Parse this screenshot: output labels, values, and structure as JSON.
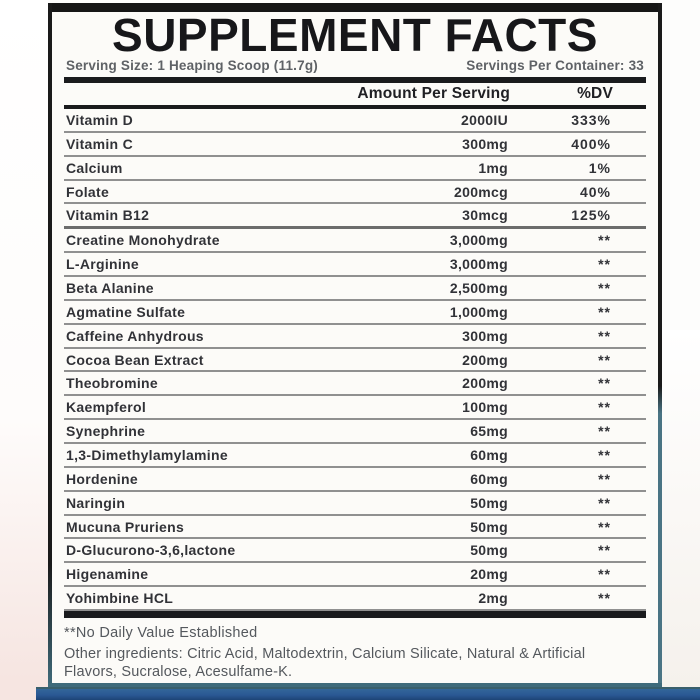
{
  "label": {
    "title": "SUPPLEMENT FACTS",
    "serving_size": "Serving Size: 1 Heaping Scoop (11.7g)",
    "servings_per_container": "Servings Per Container: 33",
    "columns": {
      "amount": "Amount Per Serving",
      "dv": "%DV"
    },
    "rows": [
      {
        "name": "Vitamin D",
        "amount": "2000IU",
        "dv": "333%"
      },
      {
        "name": "Vitamin C",
        "amount": "300mg",
        "dv": "400%"
      },
      {
        "name": "Calcium",
        "amount": "1mg",
        "dv": "1%"
      },
      {
        "name": "Folate",
        "amount": "200mcg",
        "dv": "40%"
      },
      {
        "name": "Vitamin B12",
        "amount": "30mcg",
        "dv": "125%"
      },
      {
        "name": "Creatine Monohydrate",
        "amount": "3,000mg",
        "dv": "**"
      },
      {
        "name": "L-Arginine",
        "amount": "3,000mg",
        "dv": "**"
      },
      {
        "name": "Beta Alanine",
        "amount": "2,500mg",
        "dv": "**"
      },
      {
        "name": "Agmatine Sulfate",
        "amount": "1,000mg",
        "dv": "**"
      },
      {
        "name": "Caffeine Anhydrous",
        "amount": "300mg",
        "dv": "**"
      },
      {
        "name": "Cocoa Bean Extract",
        "amount": "200mg",
        "dv": "**"
      },
      {
        "name": "Theobromine",
        "amount": "200mg",
        "dv": "**"
      },
      {
        "name": "Kaempferol",
        "amount": "100mg",
        "dv": "**"
      },
      {
        "name": "Synephrine",
        "amount": "65mg",
        "dv": "**"
      },
      {
        "name": "1,3-Dimethylamylamine",
        "amount": "60mg",
        "dv": "**"
      },
      {
        "name": "Hordenine",
        "amount": "60mg",
        "dv": "**"
      },
      {
        "name": "Naringin",
        "amount": "50mg",
        "dv": "**"
      },
      {
        "name": "Mucuna Pruriens",
        "amount": "50mg",
        "dv": "**"
      },
      {
        "name": "D-Glucurono-3,6,lactone",
        "amount": "50mg",
        "dv": "**"
      },
      {
        "name": "Higenamine",
        "amount": "20mg",
        "dv": "**"
      },
      {
        "name": "Yohimbine HCL",
        "amount": "2mg",
        "dv": "**"
      }
    ],
    "footnote": "**No Daily Value Established",
    "other_ingredients": "Other ingredients: Citric Acid, Maltodextrin, Calcium Silicate, Natural & Artificial Flavors, Sucralose, Acesulfame-K."
  },
  "colors": {
    "bar_black": "#1a1b1d",
    "teal_border": "#47707f",
    "accent_blue": "#2a5894",
    "row_separator": "#909090",
    "text_primary": "#313237",
    "text_secondary": "#54585d"
  }
}
